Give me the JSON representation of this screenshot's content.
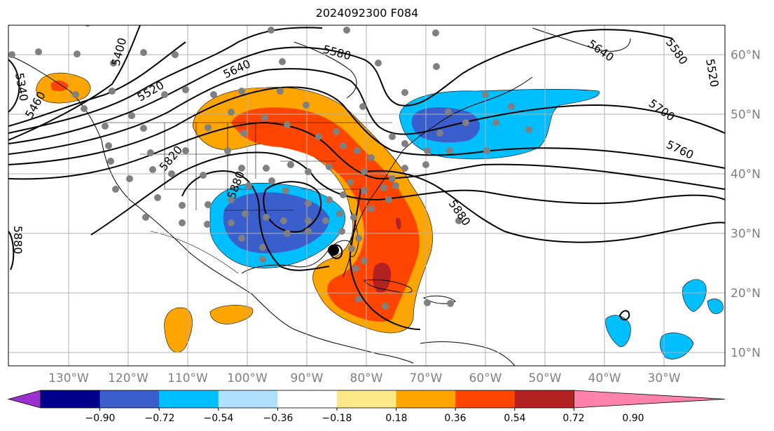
{
  "title": "2024092300 F084",
  "lat_labels": [
    "60°N",
    "50°N",
    "40°N",
    "30°N",
    "20°N",
    "10°N"
  ],
  "lon_labels": [
    "130°W",
    "120°W",
    "110°W",
    "100°W",
    "90°W",
    "80°W",
    "70°W",
    "60°W",
    "50°W",
    "40°W",
    "30°W"
  ],
  "contour_labels": [
    "5340",
    "5400",
    "5460",
    "5520",
    "5580",
    "5640",
    "5700",
    "5760",
    "5820",
    "5880",
    "5880",
    "5880",
    "5640",
    "5580",
    "5520"
  ],
  "colorbar": {
    "colors": [
      "#9b30d0",
      "#00008b",
      "#3a5fcd",
      "#00bfff",
      "#b0e2ff",
      "#ffffff",
      "#ffe88a",
      "#ffa500",
      "#ff4500",
      "#b22222",
      "#ff82ab"
    ],
    "ticks": [
      "−0.90",
      "−0.72",
      "−0.54",
      "−0.36",
      "−0.18",
      "0.18",
      "0.36",
      "0.54",
      "0.72",
      "0.90"
    ]
  },
  "colors": {
    "orange": "#ffa500",
    "red_orange": "#ff4500",
    "dark_red": "#b22222",
    "light_blue": "#00bfff",
    "royal_blue": "#3a5fcd",
    "station_dot": "#808080"
  }
}
